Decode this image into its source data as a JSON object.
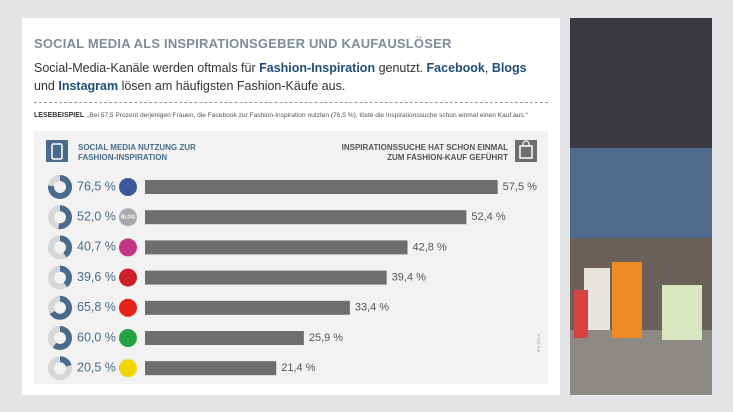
{
  "chart_data": {
    "type": "bar",
    "title": "SOCIAL MEDIA ALS INSPIRATIONSGEBER UND KAUFAUSLÖSER",
    "subtitle": [
      {
        "text": "Social-Media-Kanäle werden oftmals für ",
        "bold": false
      },
      {
        "text": "Fashion-Inspiration",
        "bold": true
      },
      {
        "text": " genutzt. ",
        "bold": false
      },
      {
        "text": "Facebook",
        "bold": true
      },
      {
        "text": ", ",
        "bold": false
      },
      {
        "text": "Blogs",
        "bold": true
      },
      {
        "text": " und ",
        "bold": false
      },
      {
        "text": "Instagram",
        "bold": true
      },
      {
        "text": " lösen am häufigsten Fashion-Käufe aus.",
        "bold": false
      }
    ],
    "example_label": "LESEBEISPIEL",
    "example_text": "„Bei 57,5 Prozent derjenigen Frauen, die Facebook zur Fashion-Inspiration nutzten (76,5 %), löste die Inspirationssuche schon einmal einen Kauf aus.“",
    "source": "IFH KÖLN",
    "categories": [
      null,
      "BLOG",
      null,
      null,
      null,
      null,
      null
    ],
    "icon_colors": [
      "#3b5998",
      "#a7a9ac",
      "#c13584",
      "#cb2027",
      "#e62117",
      "#25a244",
      "#f2d600"
    ],
    "xlim": [
      0,
      60
    ],
    "donut_lim": [
      0,
      100
    ],
    "series": [
      {
        "name": "SOCIAL MEDIA NUTZUNG ZUR FASHION-INSPIRATION",
        "type": "donut",
        "color": "#4a6b8a",
        "values": [
          76.5,
          52.0,
          40.7,
          39.6,
          65.8,
          60.0,
          20.5
        ],
        "value_labels": [
          "76,5 %",
          "52,0 %",
          "40,7 %",
          "39,6 %",
          "65,8 %",
          "60,0 %",
          "20,5 %"
        ]
      },
      {
        "name": "INSPIRATIONSSUCHE HAT SCHON EINMAL ZUM FASHION-KAUF GEFÜHRT",
        "type": "bar",
        "color": "#6d6e70",
        "values": [
          57.5,
          52.4,
          42.8,
          39.4,
          33.4,
          25.9,
          21.4
        ],
        "value_labels": [
          "57,5 %",
          "52,4 %",
          "42,8 %",
          "39,4 %",
          "33,4 %",
          "25,9 %",
          "21,4 %"
        ]
      }
    ]
  }
}
